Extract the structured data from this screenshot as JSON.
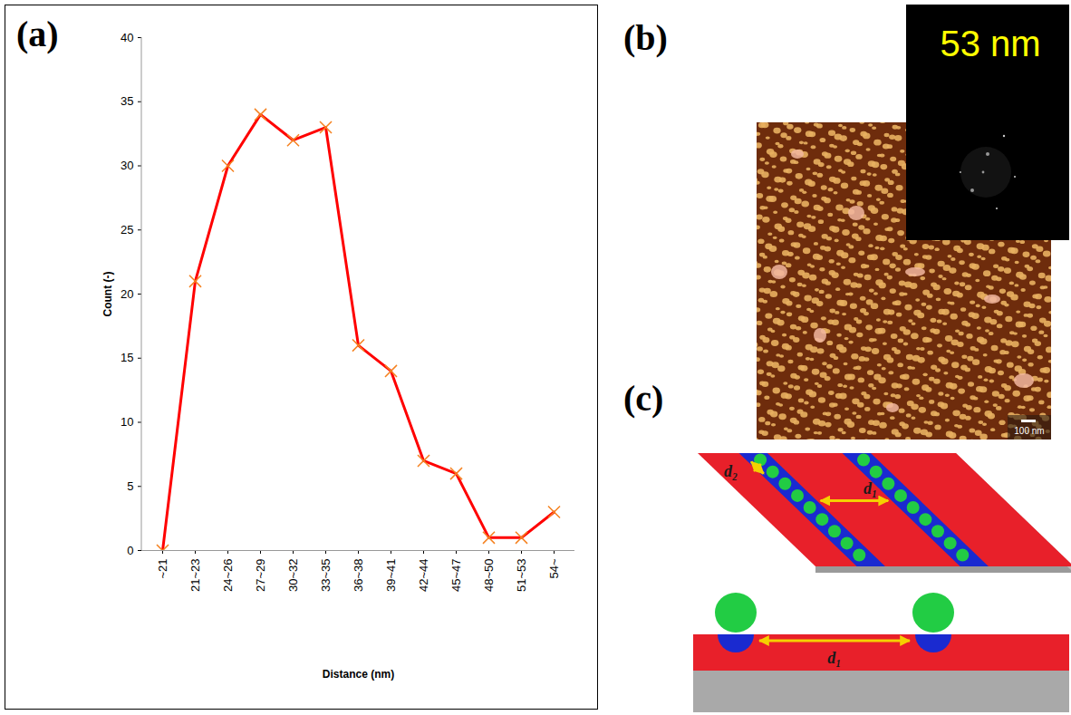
{
  "chart_data": {
    "type": "line",
    "x_label": "Distance (nm)",
    "y_label": "Count (-)",
    "categories": [
      "~21",
      "21~23",
      "24~26",
      "27~29",
      "30~32",
      "33~35",
      "36~38",
      "39~41",
      "42~44",
      "45~47",
      "48~50",
      "51~53",
      "54~"
    ],
    "values": [
      0,
      21,
      30,
      34,
      32,
      33,
      16,
      14,
      7,
      6,
      1,
      1,
      3
    ],
    "color": "#ff0000",
    "marker": "x",
    "ylim": [
      0,
      40
    ],
    "yticks": [
      0,
      5,
      10,
      15,
      20,
      25,
      30,
      35,
      40
    ]
  },
  "figure": {
    "panel_labels": [
      "(a)",
      "(b)",
      "(c)"
    ],
    "afm_image": {
      "inset_label": "53 nm",
      "scale_bar": "100 nm"
    },
    "schematic": {
      "labels": [
        "d₂",
        "d₁",
        "d₁"
      ]
    }
  }
}
